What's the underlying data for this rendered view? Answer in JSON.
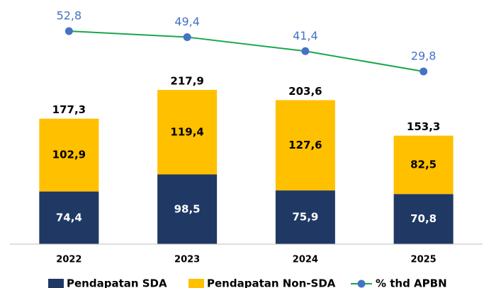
{
  "chart_data": {
    "type": "bar",
    "stacked": true,
    "categories": [
      "2022",
      "2023",
      "2024",
      "2025"
    ],
    "series": [
      {
        "name": "Pendapatan SDA",
        "color": "#1f3864",
        "label_color": "#ffffff",
        "values": [
          74.4,
          98.5,
          75.9,
          70.8
        ],
        "value_labels": [
          "74,4",
          "98,5",
          "75,9",
          "70,8"
        ]
      },
      {
        "name": "Pendapatan Non-SDA",
        "color": "#ffc000",
        "label_color": "#000000",
        "values": [
          102.9,
          119.4,
          127.6,
          82.5
        ],
        "value_labels": [
          "102,9",
          "119,4",
          "127,6",
          "82,5"
        ]
      },
      {
        "name": "% thd APBN",
        "type": "line",
        "axis": "y2",
        "color": "#1aa64b",
        "marker_color": "#4472c4",
        "label_color": "#4472c4",
        "values": [
          52.8,
          49.4,
          41.4,
          29.8
        ],
        "value_labels": [
          "52,8",
          "49,4",
          "41,4",
          "29,8"
        ]
      }
    ],
    "totals": [
      177.3,
      217.9,
      203.6,
      153.3
    ],
    "total_labels": [
      "177,3",
      "217,9",
      "203,6",
      "153,3"
    ],
    "ylim": [
      0,
      300
    ],
    "y2lim": [
      -68.6,
      52.4
    ]
  }
}
